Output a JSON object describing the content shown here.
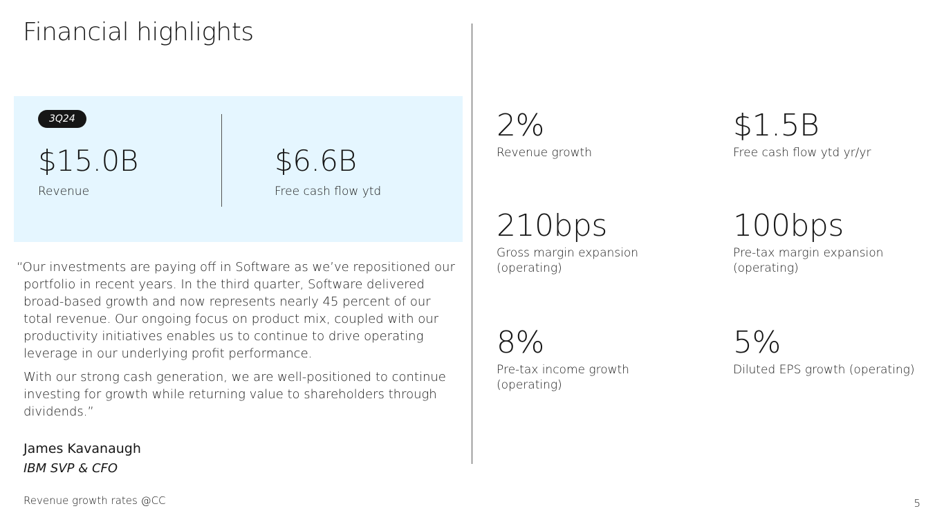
{
  "title": "Financial highlights",
  "hero": {
    "badge": "3Q24",
    "metrics": [
      {
        "value": "$15.0B",
        "label": "Revenue"
      },
      {
        "value": "$6.6B",
        "label": "Free cash flow ytd"
      }
    ]
  },
  "quote": {
    "paragraphs": [
      "“Our investments are paying off in Software as we’ve repositioned our portfolio in recent years. In the third quarter, Software delivered broad-based growth and now represents nearly 45 percent of our total revenue. Our ongoing focus on product mix, coupled with our productivity initiatives enables us to continue to drive operating leverage in our underlying profit performance.",
      "With our strong cash generation, we are well-positioned to continue investing for growth while returning value to shareholders through dividends.”"
    ],
    "author": "James Kavanaugh",
    "author_title": "IBM SVP & CFO"
  },
  "kpis": [
    {
      "value": "2%",
      "label": "Revenue growth"
    },
    {
      "value": "$1.5B",
      "label": "Free cash flow ytd yr/yr"
    },
    {
      "value": "210bps",
      "label": "Gross margin expansion (operating)"
    },
    {
      "value": "100bps",
      "label": "Pre-tax margin expansion (operating)"
    },
    {
      "value": "8%",
      "label": "Pre-tax income growth (operating)"
    },
    {
      "value": "5%",
      "label": "Diluted EPS growth (operating)"
    }
  ],
  "footnote": "Revenue growth rates @CC",
  "page_number": "5"
}
